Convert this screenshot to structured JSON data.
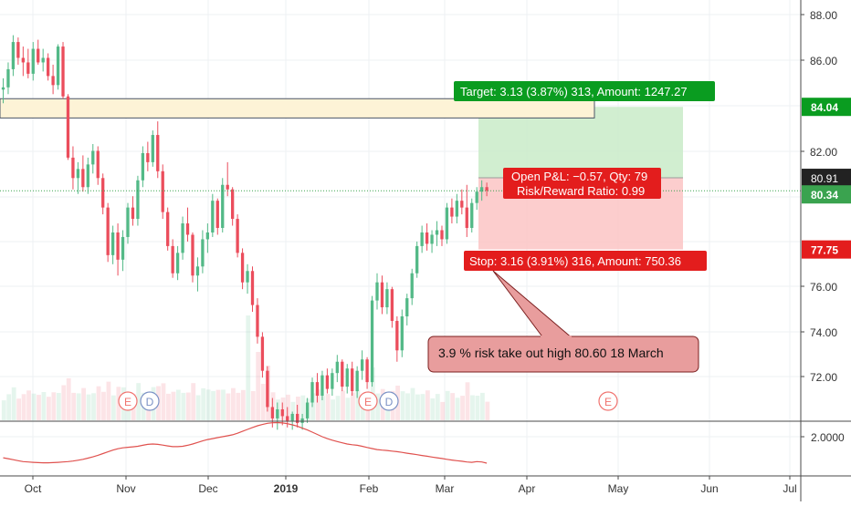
{
  "colors": {
    "up": "#53b987",
    "down": "#eb4d5c",
    "target_zone": "#c9ebc8",
    "stop_zone": "#fbc4c4",
    "target_label": "#0a9c20",
    "stop_label": "#e31d1d",
    "resistance_zone": "#fdf3d6",
    "current_price": "#3aa34f",
    "indicator_line": "#e0524f",
    "note_bg": "#e89d9d",
    "note_border": "#7b1f1f",
    "earnings": "#f0736f",
    "dividend": "#7b91c5"
  },
  "chart_data": {
    "type": "candlestick",
    "x_axis": {
      "tick_labels": [
        "Oct",
        "Nov",
        "Dec",
        "2019",
        "Feb",
        "Mar",
        "Apr",
        "May",
        "Jun",
        "Jul"
      ]
    },
    "y_axis": {
      "tick_labels": [
        "88.00",
        "86.00",
        "82.00",
        "76.00",
        "74.00",
        "72.00"
      ],
      "range": [
        69.8,
        88.5
      ],
      "price_labels": [
        {
          "value": 84.04,
          "text": "84.04",
          "color": "#0a9c20"
        },
        {
          "value": 80.91,
          "text": "80.91",
          "color": "#222222"
        },
        {
          "value": 80.34,
          "text": "80.34",
          "color": "#3aa34f"
        },
        {
          "value": 77.75,
          "text": "77.75",
          "color": "#e31d1d"
        }
      ]
    },
    "indicator_axis": {
      "tick_labels": [
        "2.0000"
      ]
    },
    "candles": [
      [
        84.8,
        85.3,
        84.2,
        84.9
      ],
      [
        84.9,
        86.0,
        84.6,
        85.7
      ],
      [
        85.7,
        87.2,
        85.4,
        86.9
      ],
      [
        86.9,
        87.1,
        85.9,
        86.2
      ],
      [
        86.2,
        86.7,
        85.4,
        86.0
      ],
      [
        86.0,
        86.6,
        85.3,
        85.5
      ],
      [
        85.5,
        86.9,
        85.2,
        86.6
      ],
      [
        86.6,
        87.0,
        85.9,
        86.0
      ],
      [
        86.0,
        86.6,
        85.6,
        86.2
      ],
      [
        86.2,
        86.4,
        85.2,
        85.4
      ],
      [
        85.4,
        85.9,
        84.6,
        85.0
      ],
      [
        85.0,
        86.8,
        84.8,
        86.7
      ],
      [
        86.7,
        86.9,
        84.4,
        84.5
      ],
      [
        84.5,
        84.6,
        81.7,
        81.8
      ],
      [
        81.8,
        82.3,
        80.4,
        80.9
      ],
      [
        80.9,
        81.6,
        80.2,
        81.3
      ],
      [
        81.3,
        81.9,
        80.3,
        80.5
      ],
      [
        80.5,
        81.8,
        80.2,
        81.5
      ],
      [
        81.5,
        82.4,
        81.1,
        82.1
      ],
      [
        82.1,
        82.3,
        80.6,
        80.9
      ],
      [
        80.9,
        81.1,
        79.3,
        79.6
      ],
      [
        79.6,
        79.8,
        77.2,
        77.5
      ],
      [
        77.5,
        78.8,
        77.1,
        78.5
      ],
      [
        78.5,
        78.9,
        76.6,
        77.3
      ],
      [
        77.3,
        78.6,
        76.8,
        78.3
      ],
      [
        78.3,
        79.8,
        78.0,
        79.6
      ],
      [
        79.6,
        80.1,
        78.8,
        79.1
      ],
      [
        79.1,
        81.0,
        78.8,
        80.8
      ],
      [
        80.8,
        82.3,
        80.5,
        82.0
      ],
      [
        82.0,
        82.5,
        81.2,
        81.6
      ],
      [
        81.6,
        83.0,
        81.4,
        82.8
      ],
      [
        82.8,
        83.4,
        80.9,
        81.2
      ],
      [
        81.2,
        81.5,
        79.1,
        79.4
      ],
      [
        79.4,
        79.6,
        77.7,
        77.9
      ],
      [
        77.9,
        78.2,
        76.5,
        76.7
      ],
      [
        76.7,
        77.9,
        76.4,
        77.6
      ],
      [
        77.6,
        79.2,
        77.3,
        78.9
      ],
      [
        78.9,
        79.6,
        78.1,
        78.4
      ],
      [
        78.4,
        78.5,
        76.3,
        76.6
      ],
      [
        76.6,
        77.4,
        75.9,
        77.0
      ],
      [
        77.0,
        78.6,
        76.7,
        78.2
      ],
      [
        78.2,
        78.9,
        77.6,
        78.5
      ],
      [
        78.5,
        80.2,
        78.3,
        79.9
      ],
      [
        79.9,
        80.0,
        78.4,
        78.7
      ],
      [
        78.7,
        80.9,
        78.5,
        80.6
      ],
      [
        80.6,
        81.6,
        80.1,
        80.4
      ],
      [
        80.4,
        80.5,
        78.8,
        79.1
      ],
      [
        79.1,
        79.3,
        77.4,
        77.6
      ],
      [
        77.6,
        77.8,
        76.0,
        76.3
      ],
      [
        76.3,
        77.1,
        75.8,
        76.8
      ],
      [
        76.8,
        77.0,
        75.0,
        75.3
      ],
      [
        75.3,
        75.6,
        73.6,
        73.9
      ],
      [
        73.9,
        74.1,
        72.1,
        72.4
      ],
      [
        72.4,
        72.6,
        70.6,
        70.8
      ],
      [
        70.8,
        71.2,
        69.9,
        70.3
      ],
      [
        70.3,
        71.0,
        69.8,
        70.7
      ],
      [
        70.7,
        71.0,
        70.0,
        70.4
      ],
      [
        70.4,
        70.8,
        69.9,
        70.2
      ],
      [
        70.2,
        70.6,
        69.8,
        70.5
      ],
      [
        70.5,
        70.9,
        69.9,
        70.1
      ],
      [
        70.1,
        70.5,
        69.8,
        70.3
      ],
      [
        70.3,
        71.2,
        70.1,
        71.0
      ],
      [
        71.0,
        72.1,
        70.8,
        71.9
      ],
      [
        71.9,
        72.3,
        71.0,
        71.3
      ],
      [
        71.3,
        72.4,
        71.1,
        72.2
      ],
      [
        72.2,
        72.5,
        71.4,
        71.6
      ],
      [
        71.6,
        72.5,
        71.3,
        72.3
      ],
      [
        72.3,
        73.1,
        71.9,
        72.8
      ],
      [
        72.8,
        72.9,
        71.5,
        71.7
      ],
      [
        71.7,
        72.7,
        71.4,
        72.5
      ],
      [
        72.5,
        72.8,
        71.3,
        71.5
      ],
      [
        71.5,
        72.6,
        71.2,
        72.4
      ],
      [
        72.4,
        73.3,
        72.0,
        72.9
      ],
      [
        72.9,
        73.0,
        71.6,
        71.9
      ],
      [
        71.9,
        75.7,
        71.7,
        75.5
      ],
      [
        75.5,
        76.7,
        75.1,
        76.3
      ],
      [
        76.3,
        76.6,
        74.9,
        75.2
      ],
      [
        75.2,
        76.3,
        74.9,
        76.0
      ],
      [
        76.0,
        76.1,
        74.3,
        74.6
      ],
      [
        74.6,
        74.8,
        72.8,
        73.3
      ],
      [
        73.3,
        75.1,
        73.0,
        74.8
      ],
      [
        74.8,
        75.8,
        74.4,
        75.6
      ],
      [
        75.6,
        76.9,
        75.3,
        76.7
      ],
      [
        76.7,
        78.1,
        76.5,
        77.9
      ],
      [
        77.9,
        78.8,
        77.6,
        78.5
      ],
      [
        78.5,
        78.9,
        77.7,
        78.0
      ],
      [
        78.0,
        78.6,
        77.6,
        78.4
      ],
      [
        78.4,
        79.0,
        77.9,
        78.6
      ],
      [
        78.6,
        78.8,
        77.9,
        78.2
      ],
      [
        78.2,
        79.8,
        78.0,
        79.6
      ],
      [
        79.6,
        80.0,
        78.9,
        79.2
      ],
      [
        79.2,
        80.2,
        78.9,
        79.9
      ],
      [
        79.9,
        80.4,
        79.3,
        79.6
      ],
      [
        79.6,
        80.6,
        78.3,
        78.7
      ],
      [
        78.7,
        80.0,
        78.5,
        79.8
      ],
      [
        79.8,
        80.5,
        79.5,
        80.3
      ],
      [
        80.3,
        80.8,
        79.9,
        80.5
      ],
      [
        80.5,
        80.7,
        80.1,
        80.34
      ]
    ],
    "position": {
      "entry": 80.91,
      "target": 84.04,
      "stop": 77.75,
      "target_label": "Target: 3.13 (3.87%) 313, Amount: 1247.27",
      "stop_label": "Stop: 3.16 (3.91%) 316, Amount: 750.36",
      "pnl_label": "Open P&L: −0.57, Qty: 79",
      "rr_label": "Risk/Reward Ratio: 0.99"
    },
    "resistance_zone": [
      83.55,
      84.4
    ],
    "current_price": 80.34,
    "annotation": "3.9 % risk take out high 80.60  18 March",
    "events": [
      {
        "letter": "E",
        "kind": "earnings"
      },
      {
        "letter": "D",
        "kind": "dividend"
      },
      {
        "letter": "E",
        "kind": "earnings"
      },
      {
        "letter": "D",
        "kind": "dividend"
      },
      {
        "letter": "E",
        "kind": "earnings"
      }
    ],
    "indicator": [
      1.89,
      1.885,
      1.88,
      1.875,
      1.87,
      1.868,
      1.866,
      1.865,
      1.864,
      1.864,
      1.865,
      1.866,
      1.868,
      1.87,
      1.873,
      1.877,
      1.882,
      1.888,
      1.895,
      1.903,
      1.912,
      1.921,
      1.93,
      1.937,
      1.942,
      1.945,
      1.947,
      1.95,
      1.955,
      1.96,
      1.962,
      1.96,
      1.956,
      1.952,
      1.948,
      1.948,
      1.95,
      1.955,
      1.962,
      1.97,
      1.978,
      1.985,
      1.99,
      1.995,
      2.0,
      2.005,
      2.01,
      2.018,
      2.028,
      2.038,
      2.048,
      2.057,
      2.064,
      2.07,
      2.073,
      2.074,
      2.072,
      2.068,
      2.062,
      2.055,
      2.045,
      2.035,
      2.024,
      2.012,
      2.0,
      1.99,
      1.982,
      1.975,
      1.968,
      1.962,
      1.958,
      1.955,
      1.95,
      1.944,
      1.938,
      1.933,
      1.93,
      1.928,
      1.925,
      1.922,
      1.918,
      1.914,
      1.91,
      1.906,
      1.902,
      1.898,
      1.894,
      1.89,
      1.886,
      1.882,
      1.878,
      1.875,
      1.872,
      1.868,
      1.866,
      1.87,
      1.868,
      1.862
    ]
  }
}
